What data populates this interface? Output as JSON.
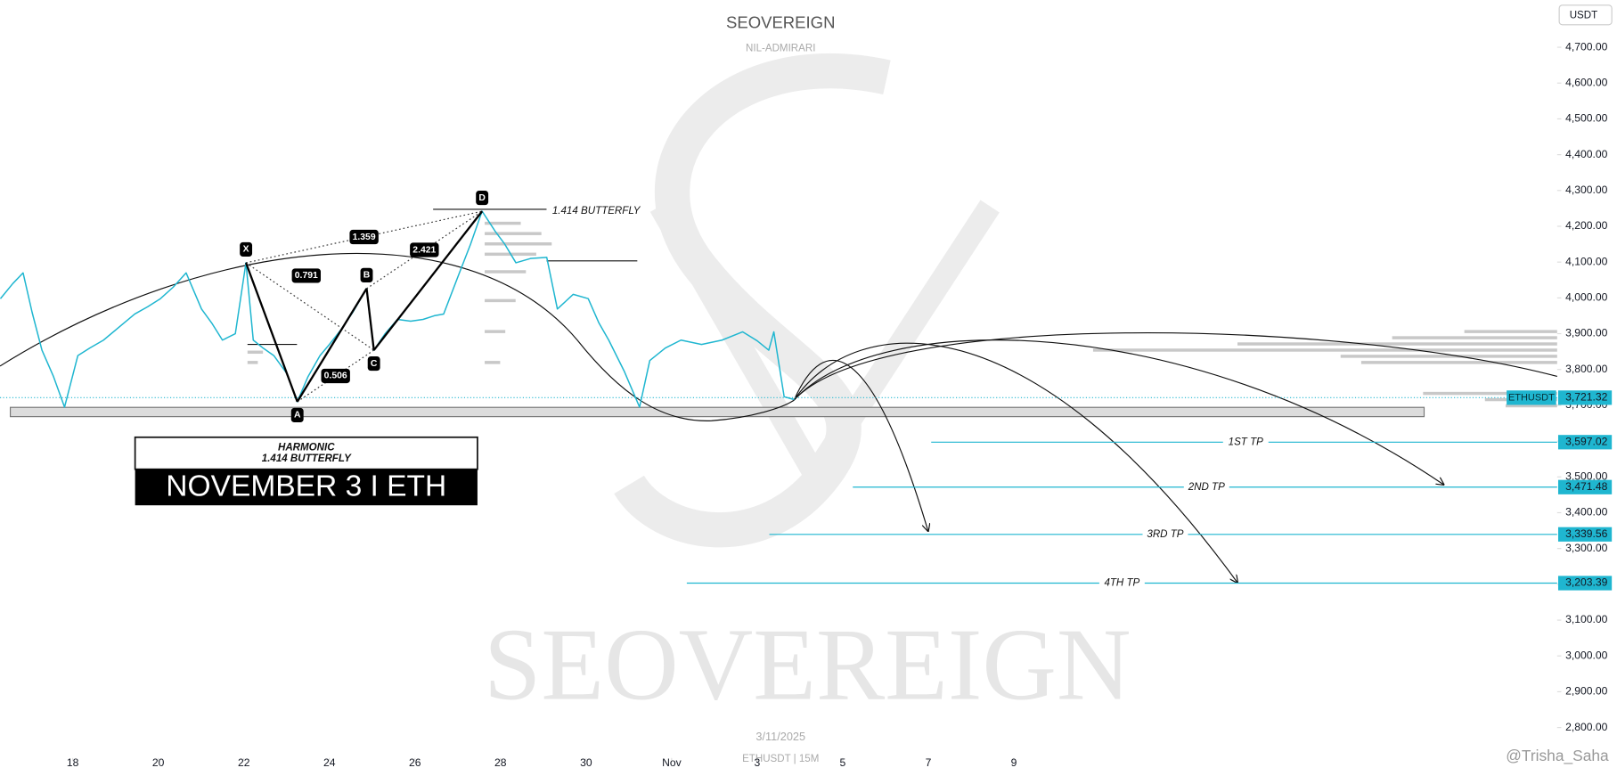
{
  "chart_data": {
    "type": "line",
    "title": "SEOVEREIGN",
    "subtitle": "NIL-ADMIRARI",
    "currency": "USDT",
    "date": "3/11/2025",
    "symbol_caption": "ETHUSDT | 15M",
    "watermark": "SEOVEREIGN",
    "handle": "@Trisha_Saha",
    "x": [
      -1.69,
      -1.4,
      -1.16,
      -0.95,
      -0.72,
      -0.45,
      -0.19,
      0.12,
      0.4,
      0.72,
      1.1,
      1.45,
      1.75,
      2.05,
      2.35,
      2.65,
      3.01,
      3.25,
      3.5,
      3.8,
      4.05,
      4.22,
      4.45,
      4.7,
      5.0,
      5.25,
      5.5,
      5.78,
      6.0,
      6.27,
      6.55,
      6.87,
      7.04,
      7.3,
      7.59,
      7.9,
      8.19,
      8.45,
      8.67,
      9.04,
      9.3,
      9.57,
      9.88,
      10.1,
      10.36,
      10.7,
      11.08,
      11.33,
      11.7,
      12.05,
      12.3,
      12.53,
      12.89,
      13.25,
      13.49,
      13.85,
      14.22,
      14.7,
      15.18,
      15.66,
      16.0,
      16.27,
      16.39,
      16.63,
      16.87
    ],
    "series": [
      {
        "name": "ETHUSDT",
        "color": "#1fb6d0",
        "values": [
          3998,
          4040,
          4070,
          3960,
          3854,
          3780,
          3695,
          3839,
          3860,
          3882,
          3920,
          3955,
          3975,
          3998,
          4030,
          4070,
          3969,
          3930,
          3882,
          3900,
          4098,
          3882,
          3860,
          3839,
          3790,
          3710,
          3780,
          3839,
          3870,
          3911,
          3960,
          4026,
          3854,
          3900,
          3940,
          3935,
          3940,
          3950,
          3955,
          4070,
          4150,
          4242,
          4185,
          4150,
          4098,
          4110,
          4113,
          3969,
          4010,
          3998,
          3930,
          3882,
          3796,
          3695,
          3825,
          3860,
          3882,
          3870,
          3882,
          3905,
          3880,
          3854,
          3905,
          3724,
          3716
        ]
      }
    ],
    "last_price": {
      "value": 3721.32,
      "label": "3,721.32"
    },
    "xlim": [
      -1.7,
      34.7
    ],
    "xticks": [
      {
        "value": 0,
        "label": "18"
      },
      {
        "value": 2,
        "label": "20"
      },
      {
        "value": 4,
        "label": "22"
      },
      {
        "value": 6,
        "label": "24"
      },
      {
        "value": 8,
        "label": "26"
      },
      {
        "value": 10,
        "label": "28"
      },
      {
        "value": 12,
        "label": "30"
      },
      {
        "value": 14,
        "label": "Nov"
      },
      {
        "value": 16,
        "label": "3"
      },
      {
        "value": 18,
        "label": "5"
      },
      {
        "value": 20,
        "label": "7"
      },
      {
        "value": 22,
        "label": "9"
      }
    ],
    "ylim": [
      2715,
      4832
    ],
    "yticks": [
      {
        "value": 2800,
        "label": "2,800.00"
      },
      {
        "value": 2900,
        "label": "2,900.00"
      },
      {
        "value": 3000,
        "label": "3,000.00"
      },
      {
        "value": 3100,
        "label": "3,100.00"
      },
      {
        "value": 3200,
        "label": "3,200.00"
      },
      {
        "value": 3300,
        "label": "3,300.00"
      },
      {
        "value": 3400,
        "label": "3,400.00"
      },
      {
        "value": 3500,
        "label": "3,500.00"
      },
      {
        "value": 3600,
        "label": "3,600.00"
      },
      {
        "value": 3700,
        "label": "3,700.00"
      },
      {
        "value": 3800,
        "label": "3,800.00"
      },
      {
        "value": 3900,
        "label": "3,900.00"
      },
      {
        "value": 4000,
        "label": "4,000.00"
      },
      {
        "value": 4100,
        "label": "4,100.00"
      },
      {
        "value": 4200,
        "label": "4,200.00"
      },
      {
        "value": 4300,
        "label": "4,300.00"
      },
      {
        "value": 4400,
        "label": "4,400.00"
      },
      {
        "value": 4500,
        "label": "4,500.00"
      },
      {
        "value": 4600,
        "label": "4,600.00"
      },
      {
        "value": 4700,
        "label": "4,700.00"
      }
    ],
    "targets": [
      {
        "name": "1ST TP",
        "value": 3597.02,
        "label": "3,597.02"
      },
      {
        "name": "2ND TP",
        "value": 3471.48,
        "label": "3,471.48"
      },
      {
        "name": "3RD TP",
        "value": 3339.56,
        "label": "3,339.56"
      },
      {
        "name": "4TH TP",
        "value": 3203.39,
        "label": "3,203.39"
      }
    ],
    "harmonic": {
      "pattern_name": "1.414 BUTTERFLY",
      "points": [
        {
          "label": "X",
          "x": 4.05,
          "price": 4098
        },
        {
          "label": "A",
          "x": 5.25,
          "price": 3710
        },
        {
          "label": "B",
          "x": 6.87,
          "price": 4026
        },
        {
          "label": "C",
          "x": 7.04,
          "price": 3854
        },
        {
          "label": "D",
          "x": 9.57,
          "price": 4242
        }
      ],
      "ratios": [
        1.359,
        0.791,
        2.421,
        0.506
      ]
    },
    "caption_box": {
      "line1": "HARMONIC",
      "line2": "1.414 BUTTERFLY",
      "headline": "NOVEMBER 3 I ETH"
    }
  }
}
